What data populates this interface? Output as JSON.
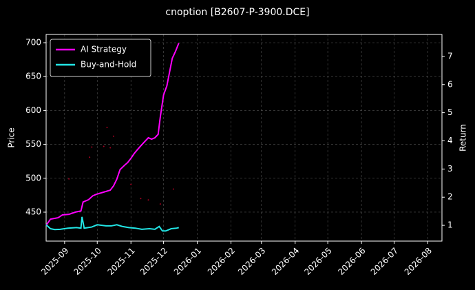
{
  "chart_data": {
    "type": "line",
    "title": "cnoption [B2607-P-3900.DCE]",
    "y_label": "Price",
    "y2_label": "Return",
    "xlim": [
      0,
      364
    ],
    "xticks": [
      {
        "value": 17,
        "label": "2025-09"
      },
      {
        "value": 47,
        "label": "2025-10"
      },
      {
        "value": 78,
        "label": "2025-11"
      },
      {
        "value": 108,
        "label": "2025-12"
      },
      {
        "value": 139,
        "label": "2026-01"
      },
      {
        "value": 170,
        "label": "2026-02"
      },
      {
        "value": 198,
        "label": "2026-03"
      },
      {
        "value": 229,
        "label": "2026-04"
      },
      {
        "value": 259,
        "label": "2026-05"
      },
      {
        "value": 290,
        "label": "2026-06"
      },
      {
        "value": 320,
        "label": "2026-07"
      },
      {
        "value": 351,
        "label": "2026-08"
      }
    ],
    "ylim": [
      407.3,
      712.2
    ],
    "yticks": [
      450,
      500,
      550,
      600,
      650,
      700
    ],
    "y2lim": [
      0.44,
      7.78
    ],
    "y2ticks": [
      1,
      2,
      3,
      4,
      5,
      6,
      7
    ],
    "grid": true,
    "legend": "upper left",
    "series": [
      {
        "name": "AI Strategy",
        "color": "#ff00ff",
        "axis": "y2",
        "x": [
          0,
          4,
          11,
          15,
          21,
          27,
          32,
          34,
          39,
          43,
          46,
          53,
          59,
          62,
          65,
          68,
          72,
          75,
          78,
          81,
          84,
          87,
          91,
          94,
          97,
          100,
          103,
          105,
          108,
          111,
          116,
          119,
          122
        ],
        "values": [
          1.0,
          1.22,
          1.27,
          1.37,
          1.39,
          1.47,
          1.51,
          1.83,
          1.91,
          2.05,
          2.1,
          2.18,
          2.25,
          2.4,
          2.64,
          2.98,
          3.13,
          3.23,
          3.38,
          3.55,
          3.69,
          3.82,
          3.99,
          4.11,
          4.06,
          4.11,
          4.23,
          4.85,
          5.63,
          5.95,
          6.93,
          7.18,
          7.47
        ]
      },
      {
        "name": "Buy-and-Hold",
        "color": "#22e6e6",
        "axis": "y2",
        "x": [
          0,
          4,
          8,
          13,
          20,
          28,
          32,
          33,
          35,
          42,
          47,
          55,
          60,
          65,
          70,
          76,
          82,
          88,
          95,
          100,
          104,
          107,
          110,
          115,
          120,
          122
        ],
        "values": [
          1.02,
          0.88,
          0.85,
          0.86,
          0.9,
          0.92,
          0.9,
          1.3,
          0.9,
          0.94,
          1.02,
          0.98,
          0.98,
          1.02,
          0.96,
          0.92,
          0.9,
          0.86,
          0.88,
          0.86,
          0.96,
          0.8,
          0.8,
          0.88,
          0.9,
          0.92
        ]
      },
      {
        "type": "scatter",
        "color": "#aa0022",
        "x": [
          21,
          40,
          42,
          53,
          56,
          59,
          62,
          78,
          87,
          94,
          105,
          117
        ],
        "values": [
          499,
          531,
          546,
          547,
          575,
          545,
          562,
          491,
          470,
          468,
          462,
          484
        ]
      }
    ]
  }
}
